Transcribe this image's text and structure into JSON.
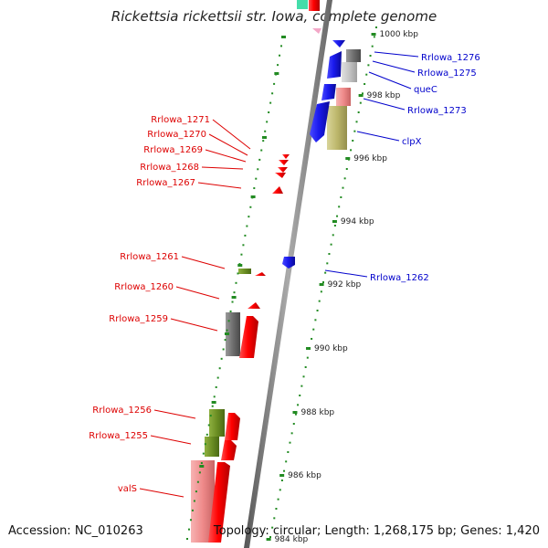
{
  "title": "Rickettsia rickettsii str. Iowa, complete genome",
  "footer": {
    "accession": "Accession: NC_010263",
    "summary": "Topology: circular; Length: 1,268,175 bp; Genes: 1,420"
  },
  "colors": {
    "forward_label": "#dd0000",
    "reverse_label": "#0000cc",
    "cds_forward": "#ff0000",
    "cds_reverse": "#1a1aee",
    "cds_forward_light": "#f08c8c",
    "rna_green": "#6b8e23",
    "grey_gene": "#777777",
    "tan_gene": "#bdb76b",
    "tick_green": "#228b22",
    "backbone": "#888888"
  },
  "kbp_ticks": [
    "1000 kbp",
    "998 kbp",
    "996 kbp",
    "994 kbp",
    "992 kbp",
    "990 kbp",
    "988 kbp",
    "986 kbp",
    "984 kbp"
  ],
  "labels_left": [
    "Rrlowa_1271",
    "Rrlowa_1270",
    "Rrlowa_1269",
    "Rrlowa_1268",
    "Rrlowa_1267",
    "Rrlowa_1261",
    "Rrlowa_1260",
    "Rrlowa_1259",
    "Rrlowa_1256",
    "Rrlowa_1255",
    "valS"
  ],
  "labels_right": [
    "Rrlowa_1276",
    "Rrlowa_1275",
    "queC",
    "Rrlowa_1273",
    "clpX",
    "Rrlowa_1262"
  ]
}
